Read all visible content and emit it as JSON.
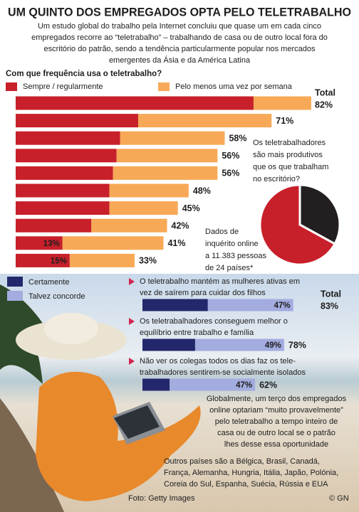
{
  "title": "UM QUINTO DOS EMPREGADOS OPTA PELO TELETRABALHO",
  "intro": [
    "Um estudo global do trabalho pela Internet concluiu que quase um em cada cinco",
    "empregados recorre ao “teletrabalho” – trabalhando de casa ou de outro local fora do",
    "escritório do patrão, sendo a tendência particularmente popular nos mercados",
    "emergentes da Ásia e da América Latina"
  ],
  "chart_data": [
    {
      "type": "stacked-barh",
      "title": "Com que frequência usa o teletrabalho?",
      "categories": [
        null,
        null,
        null,
        null,
        null,
        null,
        null,
        null,
        null,
        null
      ],
      "series": [
        {
          "name": "Sempre / regularmente",
          "color": "#c8202a",
          "values": [
            66,
            34,
            29,
            28,
            27,
            26,
            26,
            21,
            13,
            15
          ],
          "value_labels": [
            null,
            null,
            null,
            null,
            null,
            null,
            null,
            null,
            "13%",
            "15%"
          ]
        },
        {
          "name": "Pelo menos uma vez por semana",
          "color": "#f7a957",
          "values": [
            16,
            37,
            29,
            28,
            29,
            22,
            19,
            21,
            28,
            18
          ]
        }
      ],
      "total_heading": "Total",
      "total_labels": [
        "82%",
        "71%",
        "58%",
        "56%",
        "56%",
        "48%",
        "45%",
        "42%",
        "41%",
        "33%"
      ]
    },
    {
      "type": "pie",
      "title": [
        "Os teletrabalhadores",
        "são mais produtivos",
        "que os que trabalham",
        "no escritório?"
      ],
      "values": [
        33,
        67
      ],
      "colors": [
        "#231f20",
        "#c8202a"
      ],
      "note": [
        "Dados de",
        "inquérito online",
        "a 11.383 pessoas",
        "de 24 países*"
      ]
    },
    {
      "type": "stacked-barh",
      "categories": [
        [
          "O teletrabalho mantém as mulheres ativas em",
          "vez de saírem para cuidar dos filhos"
        ],
        [
          "Os teletrabalhadores conseguem melhor o",
          "equilíbrio entre trabalho e família"
        ],
        [
          "Não ver os colegas todos os dias faz os tele-",
          "trabalhadores sentirem-se socialmente isolados"
        ]
      ],
      "series": [
        {
          "name": "Certamente",
          "color": "#22286b",
          "values": [
            36,
            29,
            15
          ]
        },
        {
          "name": "Talvez concorde",
          "color": "#a3acdf",
          "values": [
            47,
            49,
            47
          ],
          "value_labels": [
            "47%",
            "49%",
            "47%"
          ]
        }
      ],
      "total_heading": "Total",
      "total_labels": [
        "83%",
        "78%",
        "62%"
      ]
    }
  ],
  "summary": [
    "Globalmente, um terço dos empregados",
    "online optariam “muito provavelmente”",
    "pelo teletrabalho a tempo inteiro de",
    "casa ou de outro local se o patrão",
    "lhes desse essa oportunidade"
  ],
  "footnote": [
    "Outros países são a Bélgica, Brasil, Canadá,",
    "França, Alemanha, Hungria, Itália, Japão, Polónia,",
    "Coreia do Sul, Espanha, Suécia, Rússia e EUA"
  ],
  "credit": "Foto: Getty Images",
  "copyright": "© GN"
}
